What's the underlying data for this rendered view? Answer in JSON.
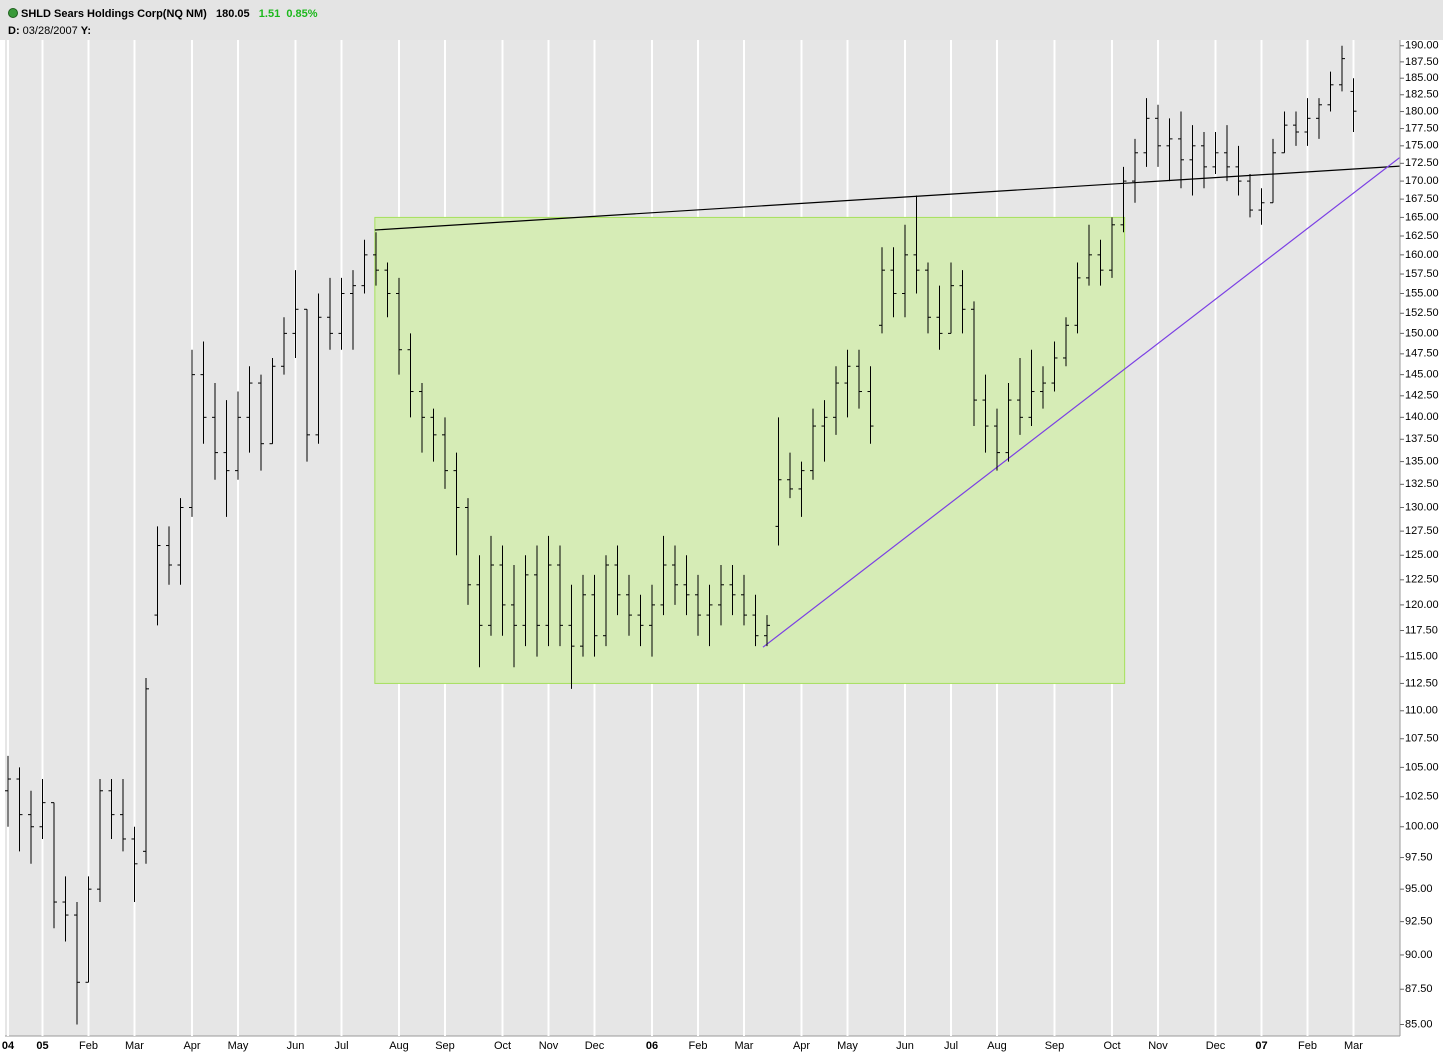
{
  "header": {
    "symbol": "SHLD Sears Holdings Corp(NQ NM)",
    "last": "180.05",
    "change": "1.51",
    "change_pct": "0.85%",
    "date_label": "D:",
    "date": "03/28/2007",
    "y_label": "Y:"
  },
  "chart_data": {
    "type": "ohlc",
    "log_scale": true,
    "grid": true,
    "bar_color": "#000000",
    "categories": [
      "04",
      null,
      null,
      "05",
      null,
      null,
      null,
      "Feb",
      null,
      null,
      null,
      "Mar",
      null,
      null,
      null,
      null,
      "Apr",
      null,
      null,
      null,
      "May",
      null,
      null,
      null,
      null,
      "Jun",
      null,
      null,
      null,
      "Jul",
      null,
      null,
      null,
      null,
      "Aug",
      null,
      null,
      null,
      "Sep",
      null,
      null,
      null,
      null,
      "Oct",
      null,
      null,
      null,
      "Nov",
      null,
      null,
      null,
      "Dec",
      null,
      null,
      null,
      null,
      "06",
      null,
      null,
      null,
      "Feb",
      null,
      null,
      null,
      "Mar",
      null,
      null,
      null,
      null,
      "Apr",
      null,
      null,
      null,
      "May",
      null,
      null,
      null,
      null,
      "Jun",
      null,
      null,
      null,
      "Jul",
      null,
      null,
      null,
      "Aug",
      null,
      null,
      null,
      null,
      "Sep",
      null,
      null,
      null,
      null,
      "Oct",
      null,
      null,
      null,
      "Nov",
      null,
      null,
      null,
      null,
      "Dec",
      null,
      null,
      null,
      "07",
      null,
      null,
      null,
      "Feb",
      null,
      null,
      null,
      "Mar"
    ],
    "open": [
      103,
      104,
      101,
      100,
      102,
      94,
      93,
      88,
      95,
      103,
      101,
      99,
      98,
      119,
      126,
      124,
      130,
      145,
      140,
      136,
      134,
      140,
      144,
      137,
      146,
      150,
      153,
      138,
      152,
      150,
      155,
      156,
      160,
      158,
      155,
      148,
      143,
      140,
      138,
      134,
      130,
      122,
      118,
      124,
      120,
      118,
      123,
      118,
      124,
      118,
      116,
      121,
      117,
      124,
      121,
      119,
      118,
      120,
      124,
      122,
      121,
      119,
      120,
      122,
      121,
      119,
      117,
      128,
      133,
      132,
      134,
      139,
      140,
      144,
      146,
      143,
      151,
      158,
      155,
      160,
      158,
      152,
      150,
      156,
      153,
      142,
      139,
      136,
      142,
      140,
      143,
      144,
      147,
      151,
      157,
      160,
      158,
      164,
      170,
      174,
      179,
      175,
      176,
      173,
      175,
      172,
      174,
      172,
      170,
      166,
      167,
      174,
      178,
      177,
      179,
      181,
      184,
      183
    ],
    "high": [
      106,
      105,
      103,
      104,
      102,
      96,
      94,
      96,
      104,
      104,
      104,
      100,
      113,
      128,
      128,
      131,
      148,
      149,
      144,
      142,
      143,
      146,
      145,
      147,
      152,
      158,
      153,
      155,
      157,
      157,
      158,
      162,
      163,
      159,
      157,
      150,
      144,
      141,
      140,
      136,
      131,
      125,
      127,
      126,
      124,
      125,
      126,
      127,
      126,
      122,
      123,
      123,
      125,
      126,
      123,
      121,
      122,
      127,
      126,
      125,
      123,
      122,
      124,
      124,
      123,
      121,
      119,
      140,
      136,
      135,
      141,
      142,
      146,
      148,
      148,
      146,
      161,
      161,
      164,
      168,
      159,
      156,
      159,
      158,
      154,
      145,
      141,
      144,
      147,
      148,
      146,
      149,
      152,
      159,
      164,
      162,
      165,
      172,
      176,
      182,
      181,
      179,
      180,
      178,
      177,
      177,
      178,
      175,
      171,
      169,
      176,
      180,
      180,
      182,
      182,
      186,
      190,
      185
    ],
    "low": [
      100,
      98,
      97,
      99,
      92,
      91,
      85,
      88,
      94,
      99,
      98,
      94,
      97,
      118,
      122,
      122,
      129,
      137,
      133,
      129,
      133,
      136,
      134,
      137,
      145,
      147,
      135,
      137,
      148,
      148,
      148,
      155,
      156,
      152,
      145,
      140,
      136,
      135,
      132,
      125,
      120,
      114,
      117,
      117,
      114,
      116,
      115,
      116,
      116,
      112,
      115,
      115,
      116,
      119,
      117,
      116,
      115,
      119,
      120,
      119,
      117,
      116,
      118,
      119,
      118,
      116,
      116,
      126,
      131,
      129,
      133,
      135,
      138,
      140,
      141,
      137,
      150,
      152,
      152,
      155,
      150,
      148,
      150,
      150,
      139,
      136,
      134,
      135,
      138,
      139,
      141,
      143,
      146,
      150,
      156,
      156,
      157,
      163,
      167,
      172,
      172,
      170,
      169,
      168,
      169,
      171,
      170,
      168,
      165,
      164,
      167,
      174,
      175,
      175,
      176,
      180,
      183,
      177
    ],
    "close": [
      104,
      101,
      100,
      102,
      94,
      93,
      88,
      95,
      103,
      101,
      99,
      97,
      112,
      126,
      124,
      130,
      145,
      140,
      136,
      134,
      140,
      144,
      137,
      146,
      150,
      153,
      138,
      152,
      150,
      155,
      156,
      160,
      158,
      155,
      148,
      143,
      140,
      138,
      134,
      130,
      122,
      118,
      124,
      120,
      118,
      123,
      118,
      124,
      118,
      116,
      121,
      117,
      124,
      121,
      119,
      118,
      120,
      124,
      122,
      121,
      119,
      120,
      122,
      121,
      119,
      117,
      118,
      133,
      132,
      134,
      139,
      140,
      144,
      146,
      143,
      139,
      158,
      155,
      160,
      158,
      152,
      150,
      156,
      153,
      142,
      139,
      136,
      142,
      140,
      143,
      144,
      147,
      151,
      157,
      160,
      158,
      164,
      170,
      174,
      179,
      175,
      176,
      173,
      175,
      172,
      174,
      172,
      170,
      166,
      167,
      174,
      178,
      177,
      179,
      181,
      184,
      188,
      180.05
    ],
    "ylim": [
      84.2,
      190.9
    ],
    "yticks": [
      {
        "value": 85,
        "label": "85.00"
      },
      {
        "value": 87.5,
        "label": "87.50"
      },
      {
        "value": 90,
        "label": "90.00"
      },
      {
        "value": 92.5,
        "label": "92.50"
      },
      {
        "value": 95,
        "label": "95.00"
      },
      {
        "value": 97.5,
        "label": "97.50"
      },
      {
        "value": 100,
        "label": "100.00"
      },
      {
        "value": 102.5,
        "label": "102.50"
      },
      {
        "value": 105,
        "label": "105.00"
      },
      {
        "value": 107.5,
        "label": "107.50"
      },
      {
        "value": 110,
        "label": "110.00"
      },
      {
        "value": 112.5,
        "label": "112.50"
      },
      {
        "value": 115,
        "label": "115.00"
      },
      {
        "value": 117.5,
        "label": "117.50"
      },
      {
        "value": 120,
        "label": "120.00"
      },
      {
        "value": 122.5,
        "label": "122.50"
      },
      {
        "value": 125,
        "label": "125.00"
      },
      {
        "value": 127.5,
        "label": "127.50"
      },
      {
        "value": 130,
        "label": "130.00"
      },
      {
        "value": 132.5,
        "label": "132.50"
      },
      {
        "value": 135,
        "label": "135.00"
      },
      {
        "value": 137.5,
        "label": "137.50"
      },
      {
        "value": 140,
        "label": "140.00"
      },
      {
        "value": 142.5,
        "label": "142.50"
      },
      {
        "value": 145,
        "label": "145.00"
      },
      {
        "value": 147.5,
        "label": "147.50"
      },
      {
        "value": 150,
        "label": "150.00"
      },
      {
        "value": 152.5,
        "label": "152.50"
      },
      {
        "value": 155,
        "label": "155.00"
      },
      {
        "value": 157.5,
        "label": "157.50"
      },
      {
        "value": 160,
        "label": "160.00"
      },
      {
        "value": 162.5,
        "label": "162.50"
      },
      {
        "value": 165,
        "label": "165.00"
      },
      {
        "value": 167.5,
        "label": "167.50"
      },
      {
        "value": 170,
        "label": "170.00"
      },
      {
        "value": 172.5,
        "label": "172.50"
      },
      {
        "value": 175,
        "label": "175.00"
      },
      {
        "value": 177.5,
        "label": "177.50"
      },
      {
        "value": 180,
        "label": "180.00"
      },
      {
        "value": 182.5,
        "label": "182.50"
      },
      {
        "value": 185,
        "label": "185.00"
      },
      {
        "value": 187.5,
        "label": "187.50"
      },
      {
        "value": 190,
        "label": "190.00"
      }
    ],
    "overlays": [
      {
        "kind": "rect",
        "x": [
          31.9,
          97.1
        ],
        "y": [
          112.5,
          165
        ],
        "color": "#d6ecb6",
        "stroke": "#a6e05c"
      },
      {
        "kind": "line",
        "x": [
          31.9,
          121
        ],
        "y": [
          163.3,
          172.1
        ],
        "color": "#000000"
      },
      {
        "kind": "line",
        "x": [
          65.65,
          121
        ],
        "y": [
          115.9,
          173.3
        ],
        "color": "#7b3fe4"
      }
    ]
  }
}
